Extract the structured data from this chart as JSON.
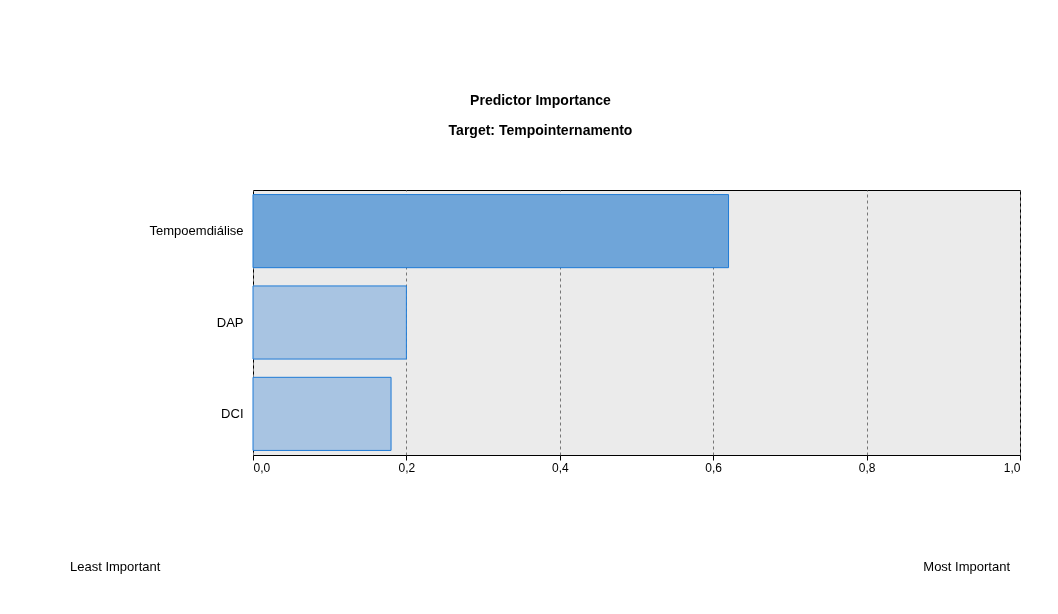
{
  "chart_data": {
    "type": "bar",
    "orientation": "horizontal",
    "title": "Predictor Importance",
    "subtitle": "Target: Tempointernamento",
    "categories": [
      "Tempoemdiálise",
      "DAP",
      "DCI"
    ],
    "values": [
      0.62,
      0.2,
      0.18
    ],
    "colors": [
      "#6fa5d9",
      "#a8c4e2",
      "#a8c4e2"
    ],
    "xlim": [
      0,
      1
    ],
    "xticks": [
      {
        "value": 0,
        "label": "0,0"
      },
      {
        "value": 0.2,
        "label": "0,2"
      },
      {
        "value": 0.4,
        "label": "0,4"
      },
      {
        "value": 0.6,
        "label": "0,6"
      },
      {
        "value": 0.8,
        "label": "0,8"
      },
      {
        "value": 1,
        "label": "1,0"
      }
    ],
    "grid": "x",
    "legend": false,
    "annotations": [
      "Least Important",
      "Most Important"
    ]
  }
}
